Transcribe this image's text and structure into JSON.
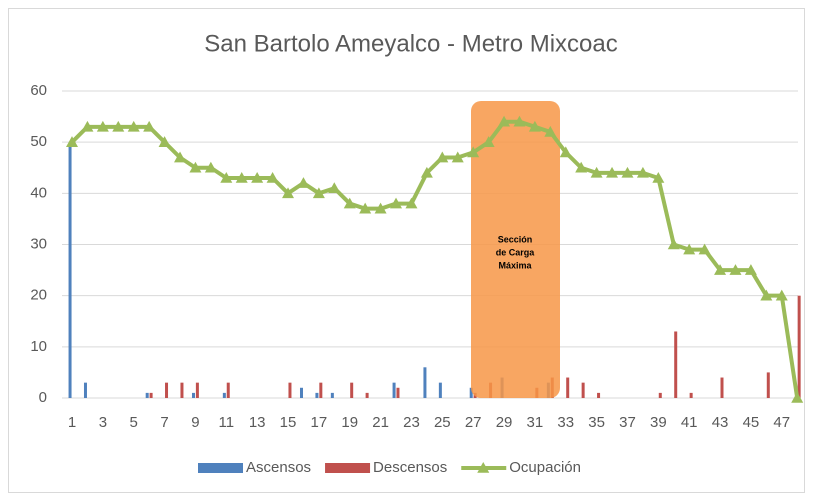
{
  "chart_data": {
    "type": "bar-line",
    "title": "San Bartolo Ameyalco - Metro Mixcoac",
    "categories": [
      1,
      null,
      3,
      null,
      5,
      null,
      7,
      null,
      9,
      null,
      11,
      null,
      13,
      null,
      15,
      null,
      17,
      null,
      19,
      null,
      21,
      null,
      23,
      null,
      25,
      null,
      27,
      null,
      29,
      null,
      31,
      null,
      33,
      null,
      35,
      null,
      37,
      null,
      39,
      null,
      41,
      null,
      43,
      null,
      45,
      null,
      47,
      null
    ],
    "series": [
      {
        "name": "Ascensos",
        "color": "#4f81bd",
        "kind": "bar",
        "values": [
          50,
          3,
          0,
          0,
          0,
          1,
          0,
          0,
          1,
          0,
          1,
          0,
          0,
          0,
          0,
          2,
          1,
          1,
          0,
          0,
          0,
          3,
          0,
          6,
          3,
          0,
          2,
          0,
          4,
          0,
          0,
          3,
          0,
          0,
          0,
          0,
          0,
          0,
          0,
          0,
          0,
          0,
          0,
          0,
          0,
          0,
          0,
          0
        ]
      },
      {
        "name": "Descensos",
        "color": "#c0504d",
        "kind": "bar",
        "values": [
          0,
          0,
          0,
          0,
          0,
          1,
          3,
          3,
          3,
          0,
          3,
          0,
          0,
          0,
          3,
          0,
          3,
          0,
          3,
          1,
          0,
          2,
          0,
          0,
          0,
          0,
          1,
          3,
          0,
          0,
          2,
          4,
          4,
          3,
          1,
          0,
          0,
          0,
          1,
          13,
          1,
          0,
          4,
          0,
          0,
          5,
          0,
          20
        ]
      },
      {
        "name": "Ocupación",
        "color": "#9bbb59",
        "kind": "line",
        "values": [
          50,
          53,
          53,
          53,
          53,
          53,
          50,
          47,
          45,
          45,
          43,
          43,
          43,
          43,
          40,
          42,
          40,
          41,
          38,
          37,
          37,
          38,
          38,
          44,
          47,
          47,
          48,
          50,
          54,
          54,
          53,
          52,
          48,
          45,
          44,
          44,
          44,
          44,
          43,
          30,
          29,
          29,
          25,
          25,
          25,
          20,
          20,
          0
        ]
      }
    ],
    "annotation": [
      "Sección",
      "de Carga",
      "Máxima"
    ],
    "ylim": [
      0,
      60
    ],
    "yticks": [
      0,
      10,
      20,
      30,
      40,
      50,
      60
    ],
    "grid": true
  }
}
